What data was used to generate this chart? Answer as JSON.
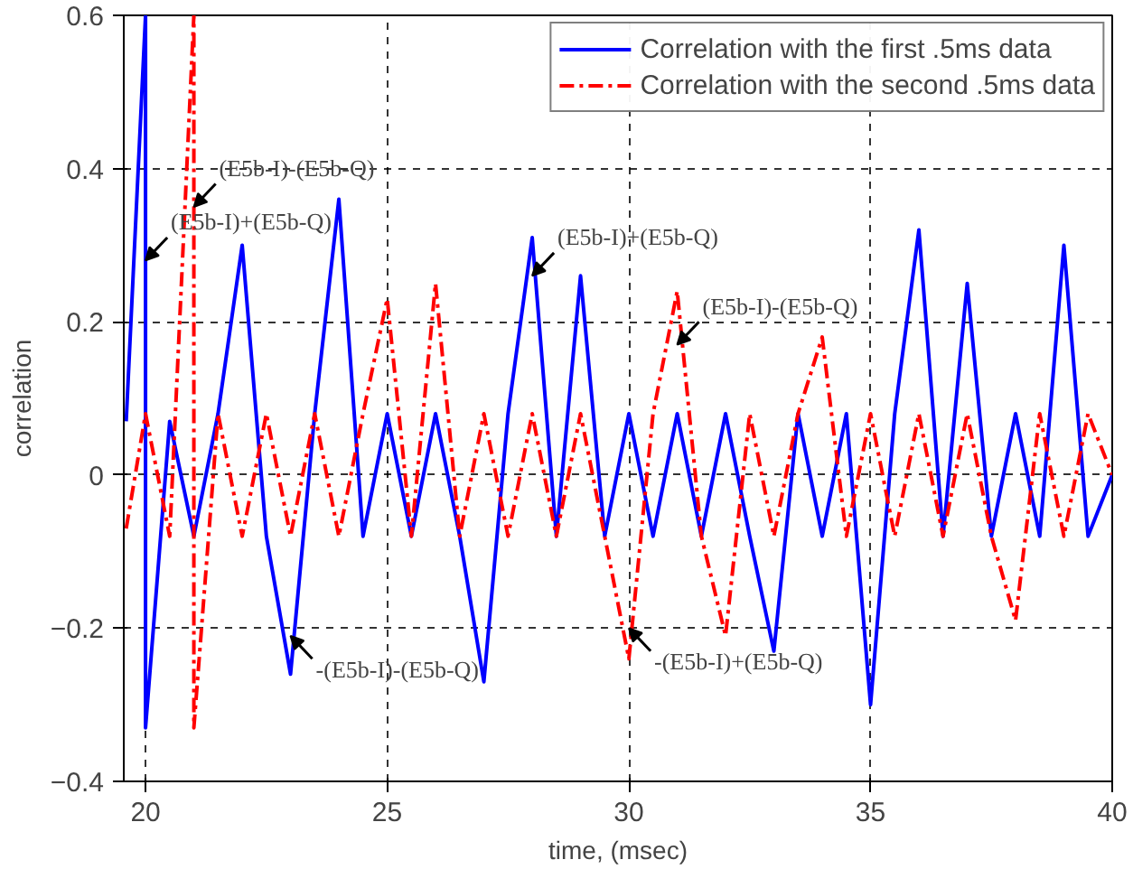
{
  "chart_data": {
    "type": "line",
    "xlabel": "time, (msec)",
    "ylabel": "correlation",
    "xlim": [
      19.55,
      40
    ],
    "ylim": [
      -0.4,
      0.6
    ],
    "xticks": [
      20,
      25,
      30,
      35,
      40
    ],
    "yticks": [
      -0.4,
      -0.2,
      0,
      0.2,
      0.4,
      0.6
    ],
    "grid": true,
    "legend": "top right",
    "series": [
      {
        "name": "Correlation with the first .5ms data",
        "color": "#0000ff",
        "line_style": "solid",
        "x": [
          19.6,
          20,
          20,
          20.5,
          21,
          21.5,
          22,
          22.5,
          23,
          23.5,
          24,
          24.5,
          25,
          25.5,
          26,
          26.5,
          27,
          27.5,
          28,
          28.5,
          29,
          29.5,
          30,
          30.5,
          31,
          31.5,
          32,
          32.5,
          33,
          33.5,
          34,
          34.5,
          35,
          35.5,
          36,
          36.5,
          37,
          37.5,
          38,
          38.5,
          39,
          39.5,
          40
        ],
        "values": [
          0.07,
          0.6,
          -0.33,
          0.07,
          -0.08,
          0.08,
          0.3,
          -0.08,
          -0.26,
          0.08,
          0.36,
          -0.08,
          0.08,
          -0.08,
          0.08,
          -0.08,
          -0.27,
          0.08,
          0.31,
          -0.08,
          0.26,
          -0.08,
          0.08,
          -0.08,
          0.08,
          -0.08,
          0.08,
          -0.08,
          -0.23,
          0.08,
          -0.08,
          0.08,
          -0.3,
          0.08,
          0.32,
          -0.08,
          0.25,
          -0.08,
          0.08,
          -0.08,
          0.3,
          -0.08,
          0
        ]
      },
      {
        "name": "Correlation with the second .5ms data",
        "color": "#ff0000",
        "line_style": "dashed",
        "x": [
          19.6,
          20,
          20.5,
          21,
          21,
          21.5,
          22,
          22.5,
          23,
          23.5,
          24,
          24.5,
          25,
          25.5,
          26,
          26.5,
          27,
          27.5,
          28,
          28.5,
          29,
          29.5,
          30,
          30.5,
          31,
          31.5,
          32,
          32.5,
          33,
          33.5,
          34,
          34.5,
          35,
          35.5,
          36,
          36.5,
          37,
          37.5,
          38,
          38.5,
          39,
          39.5,
          40
        ],
        "values": [
          -0.07,
          0.08,
          -0.08,
          0.6,
          -0.33,
          0.08,
          -0.08,
          0.08,
          -0.08,
          0.08,
          -0.08,
          0.08,
          0.23,
          -0.08,
          0.25,
          -0.08,
          0.08,
          -0.08,
          0.08,
          -0.08,
          0.08,
          -0.08,
          -0.24,
          0.08,
          0.24,
          -0.08,
          -0.21,
          0.08,
          -0.08,
          0.08,
          0.18,
          -0.08,
          0.08,
          -0.08,
          0.08,
          -0.08,
          0.08,
          -0.08,
          -0.19,
          0.08,
          -0.08,
          0.08,
          0
        ]
      }
    ],
    "annotations": [
      {
        "text": "(E5b-I)-(E5b-Q)",
        "x": 21,
        "y": 0.35
      },
      {
        "text": "(E5b-I)+(E5b-Q)",
        "x": 20,
        "y": 0.28
      },
      {
        "text": "(E5b-I)+(E5b-Q)",
        "x": 28,
        "y": 0.26
      },
      {
        "text": "(E5b-I)-(E5b-Q)",
        "x": 31,
        "y": 0.17
      },
      {
        "text": "-(E5b-I)-(E5b-Q)",
        "x": 23,
        "y": -0.21
      },
      {
        "text": "-(E5b-I)+(E5b-Q)",
        "x": 30,
        "y": -0.2
      }
    ]
  }
}
